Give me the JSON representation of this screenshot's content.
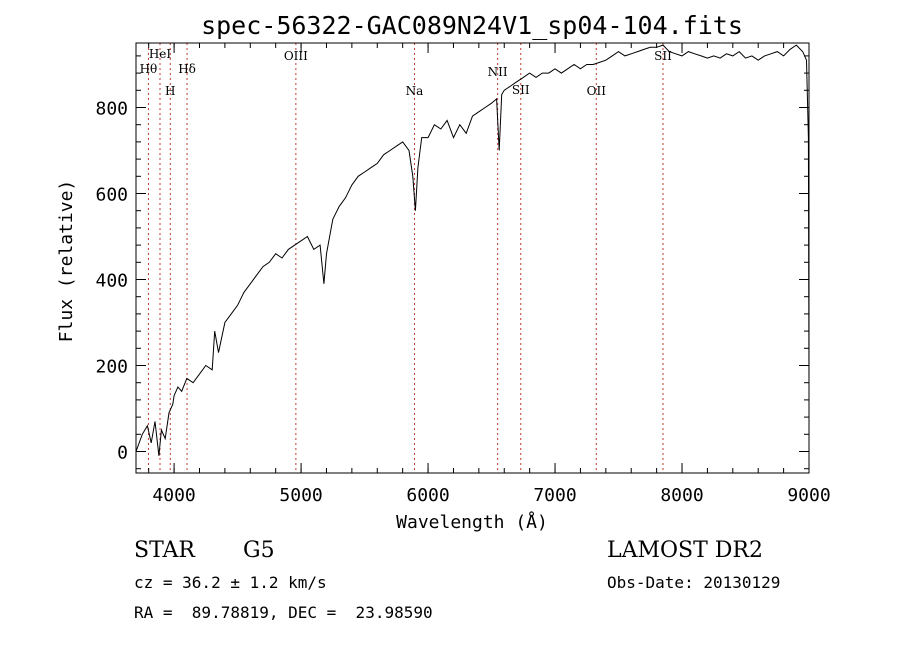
{
  "chart_data": {
    "type": "line",
    "title": "spec-56322-GAC089N24V1_sp04-104.fits",
    "xlabel": "Wavelength (Å)",
    "ylabel": "Flux (relative)",
    "xlim": [
      3700,
      9000
    ],
    "ylim": [
      -50,
      950
    ],
    "xticks": [
      4000,
      5000,
      6000,
      7000,
      8000,
      9000
    ],
    "yticks": [
      0,
      200,
      400,
      600,
      800
    ],
    "grid": false,
    "series": [
      {
        "x": [
          3700,
          3750,
          3790,
          3820,
          3850,
          3880,
          3900,
          3930,
          3960,
          3990,
          4000,
          4030,
          4060,
          4100,
          4150,
          4200,
          4250,
          4300,
          4320,
          4350,
          4400,
          4450,
          4500,
          4550,
          4600,
          4650,
          4700,
          4750,
          4800,
          4850,
          4900,
          4950,
          5000,
          5050,
          5100,
          5150,
          5180,
          5200,
          5250,
          5300,
          5350,
          5400,
          5450,
          5500,
          5550,
          5600,
          5650,
          5700,
          5750,
          5800,
          5850,
          5880,
          5900,
          5920,
          5950,
          6000,
          6050,
          6100,
          6150,
          6200,
          6250,
          6300,
          6350,
          6400,
          6450,
          6500,
          6540,
          6560,
          6580,
          6600,
          6650,
          6700,
          6750,
          6800,
          6850,
          6900,
          6950,
          7000,
          7050,
          7100,
          7150,
          7200,
          7250,
          7300,
          7350,
          7400,
          7450,
          7500,
          7550,
          7600,
          7650,
          7700,
          7750,
          7800,
          7850,
          7900,
          7950,
          8000,
          8050,
          8100,
          8150,
          8200,
          8250,
          8300,
          8350,
          8400,
          8450,
          8500,
          8550,
          8600,
          8650,
          8700,
          8750,
          8800,
          8850,
          8900,
          8950,
          8980,
          8995,
          9000
        ],
        "y": [
          0,
          40,
          60,
          20,
          70,
          -10,
          50,
          30,
          90,
          110,
          130,
          150,
          140,
          170,
          160,
          180,
          200,
          190,
          280,
          230,
          300,
          320,
          340,
          370,
          390,
          410,
          430,
          440,
          460,
          450,
          470,
          480,
          490,
          500,
          470,
          480,
          390,
          460,
          540,
          570,
          590,
          620,
          640,
          650,
          660,
          670,
          690,
          700,
          710,
          720,
          700,
          640,
          560,
          660,
          730,
          730,
          760,
          750,
          770,
          730,
          760,
          740,
          780,
          790,
          800,
          810,
          820,
          700,
          830,
          840,
          850,
          860,
          870,
          880,
          870,
          880,
          880,
          890,
          880,
          890,
          900,
          890,
          900,
          900,
          905,
          910,
          920,
          930,
          920,
          925,
          930,
          935,
          940,
          940,
          945,
          930,
          925,
          920,
          930,
          925,
          920,
          915,
          920,
          915,
          925,
          920,
          930,
          915,
          920,
          910,
          920,
          925,
          930,
          920,
          935,
          945,
          930,
          910,
          730,
          150
        ]
      }
    ],
    "annotations": [
      {
        "label": "Hθ",
        "x": 3798
      },
      {
        "label": "HeI",
        "x": 3889
      },
      {
        "label": "H",
        "x": 3970
      },
      {
        "label": "Hδ",
        "x": 4102
      },
      {
        "label": "OIII",
        "x": 4959
      },
      {
        "label": "Na",
        "x": 5893
      },
      {
        "label": "NII",
        "x": 6548
      },
      {
        "label": "SII",
        "x": 6730
      },
      {
        "label": "OII",
        "x": 7325
      },
      {
        "label": "SII",
        "x": 7850
      }
    ]
  },
  "info": {
    "object_class": "STAR",
    "subclass": "G5",
    "survey": "LAMOST DR2",
    "cz": "cz = 36.2 ± 1.2 km/s",
    "obs_date": "Obs-Date: 20130129",
    "coords": "RA =  89.78819, DEC =  23.98590"
  }
}
